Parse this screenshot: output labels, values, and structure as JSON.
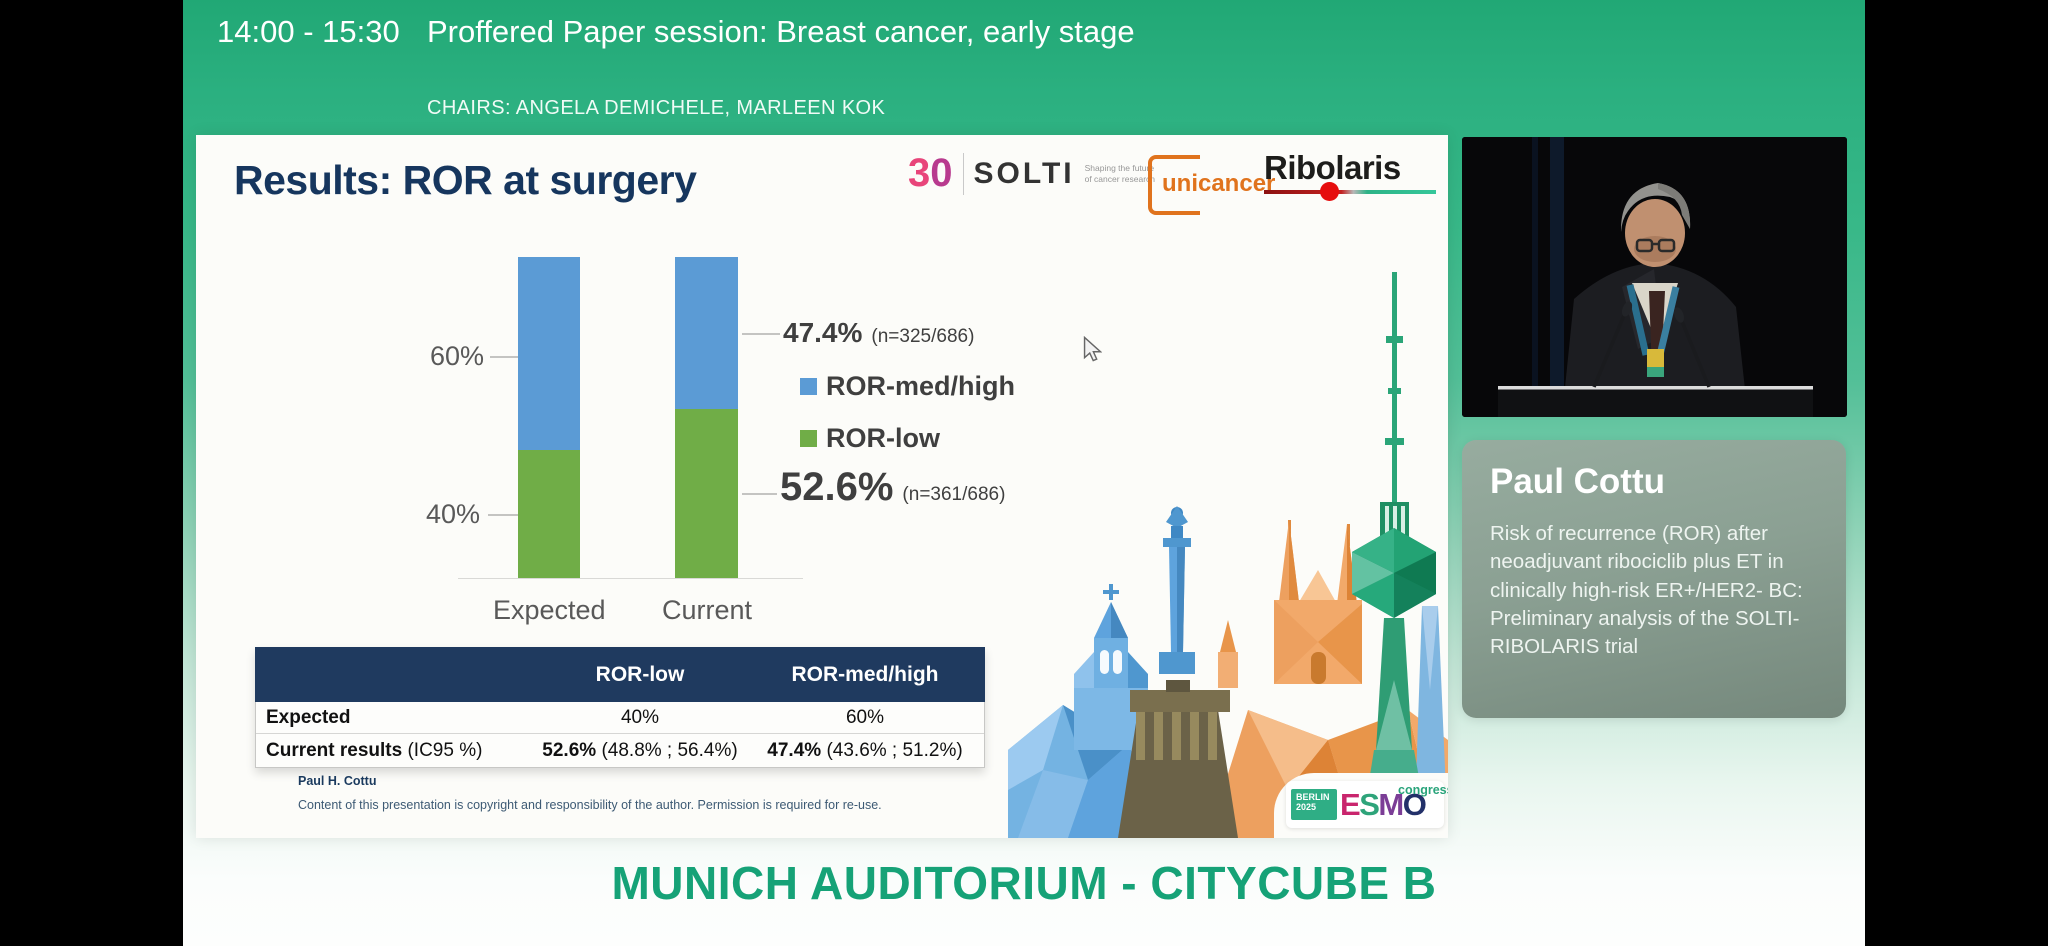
{
  "top_bar": {
    "time": "14:00 - 15:30",
    "session_title": "Proffered Paper session: Breast cancer, early stage",
    "chairs": "CHAIRS: ANGELA DEMICHELE, MARLEEN KOK"
  },
  "slide": {
    "title": "Results: ROR at surgery",
    "logos": {
      "thirty": "30",
      "solti": "SOLTI",
      "solti_tagline": "Shaping the future of cancer research",
      "unicancer": "unicancer",
      "ribolaris": "Ribolaris"
    },
    "table": {
      "col_headers": [
        "ROR-low",
        "ROR-med/high"
      ],
      "expected_row": {
        "label": "Expected",
        "ror_low": "40%",
        "ror_med_high": "60%"
      },
      "current_row": {
        "label": "Current results",
        "label_note": " (IC95 %)",
        "ror_low_value": "52.6%",
        "ror_low_ci": " (48.8% ; 56.4%)",
        "ror_med_high_value": "47.4%",
        "ror_med_high_ci": " (43.6% ; 51.2%)"
      }
    },
    "footer": {
      "author": "Paul H. Cottu",
      "copyright": "Content of this presentation is copyright and responsibility of the author. Permission is required for re-use."
    },
    "esmo_badge": {
      "city": "BERLIN",
      "year": "2025",
      "letters": [
        "E",
        "S",
        "M",
        "O"
      ],
      "congress": "congress"
    }
  },
  "chart_data": {
    "type": "bar",
    "subtype": "stacked-percent",
    "title": "Results: ROR at surgery",
    "categories": [
      "Expected",
      "Current"
    ],
    "series": [
      {
        "name": "ROR-med/high",
        "color": "#5b9bd5",
        "values": [
          60,
          47.4
        ]
      },
      {
        "name": "ROR-low",
        "color": "#70ad47",
        "values": [
          40,
          52.6
        ]
      }
    ],
    "bars": {
      "expected": {
        "med_high": 60,
        "low": 40
      },
      "current": {
        "med_high": 47.4,
        "low": 52.6
      }
    },
    "y_ticks": [
      "60%",
      "40%"
    ],
    "ylim": [
      0,
      100
    ],
    "grid": false,
    "legend_position": "right",
    "annotations": {
      "med_high": {
        "pct": "47.4%",
        "n": "(n=325/686)"
      },
      "low": {
        "pct": "52.6%",
        "n": "(n=361/686)"
      }
    },
    "legend": [
      {
        "label": "ROR-med/high",
        "color": "#5b9bd5"
      },
      {
        "label": "ROR-low",
        "color": "#70ad47"
      }
    ]
  },
  "speaker_panel": {
    "name": "Paul Cottu",
    "talk_title": "Risk of recurrence (ROR) after neoadjuvant ribociclib plus ET in clinically high-risk ER+/HER2- BC: Preliminary analysis of the SOLTI-RIBOLARIS trial"
  },
  "venue": {
    "text": "MUNICH AUDITORIUM - CITYCUBE B"
  },
  "colors": {
    "top_bar_green": "#21a875",
    "slide_navy": "#16365e",
    "table_header_navy": "#1f3a5f",
    "bar_blue": "#5b9bd5",
    "bar_green": "#70ad47",
    "venue_green": "#16a277",
    "unicancer_orange": "#e0731d"
  },
  "icons": {
    "cursor": "pointer-arrow"
  }
}
